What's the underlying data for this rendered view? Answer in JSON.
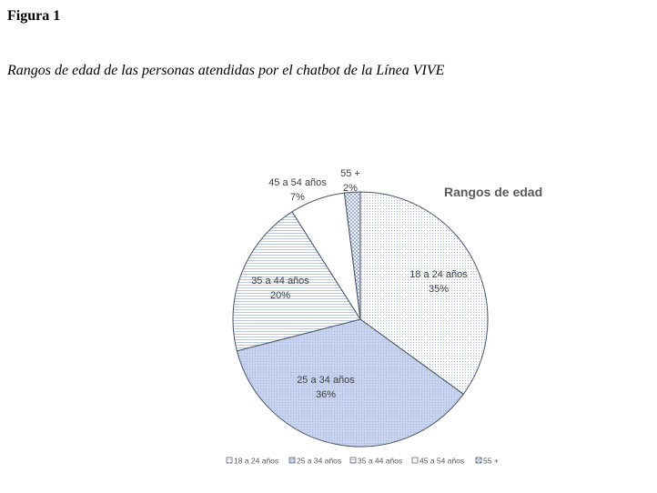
{
  "figure": {
    "label": "Figura 1",
    "caption": "Rangos de edad de las personas atendidas por el chatbot de la Línea VIVE"
  },
  "chart_data": {
    "type": "pie",
    "title": "Rangos de edad",
    "categories": [
      "18 a 24 años",
      "25 a 34 años",
      "35 a 44 años",
      "45 a 54 años",
      "55 +"
    ],
    "values": [
      35,
      36,
      20,
      7,
      2
    ],
    "value_labels": [
      "35%",
      "36%",
      "20%",
      "7%",
      "2%"
    ],
    "legend_position": "bottom",
    "colors": [
      "#f4f6fb",
      "#c8d3ee",
      "#eef1f9",
      "#ffffff",
      "#dce4f6"
    ],
    "stroke_color": "#4a5566"
  }
}
